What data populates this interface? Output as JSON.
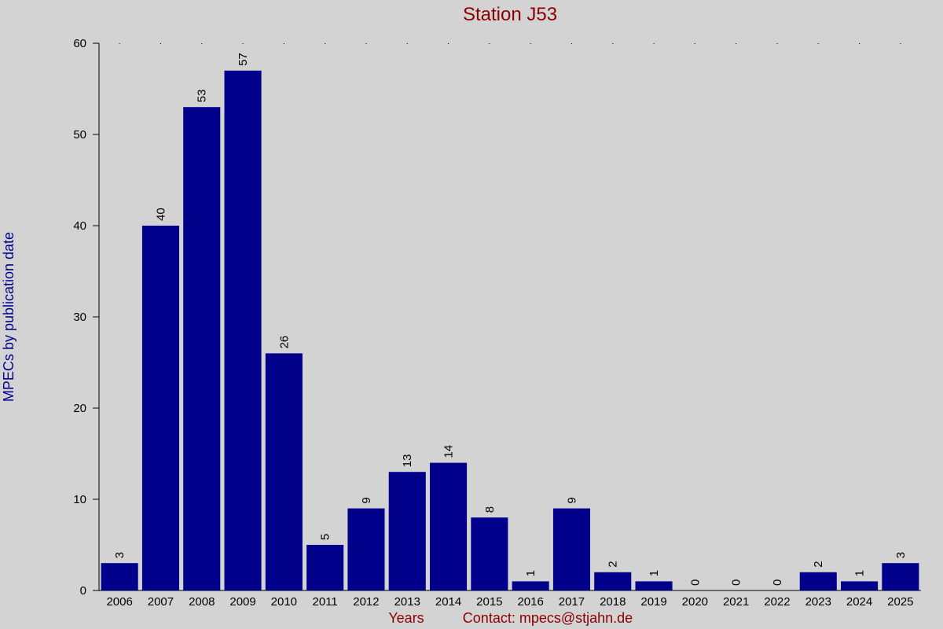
{
  "chart_data": {
    "type": "bar",
    "title": "Station J53",
    "xlabel": "Years",
    "ylabel": "MPECs by publication date",
    "contact": "Contact: mpecs@stjahn.de",
    "categories": [
      "2006",
      "2007",
      "2008",
      "2009",
      "2010",
      "2011",
      "2012",
      "2013",
      "2014",
      "2015",
      "2016",
      "2017",
      "2018",
      "2019",
      "2020",
      "2021",
      "2022",
      "2023",
      "2024",
      "2025"
    ],
    "values": [
      3,
      40,
      53,
      57,
      26,
      5,
      9,
      13,
      14,
      8,
      1,
      9,
      2,
      1,
      0,
      0,
      0,
      2,
      1,
      3
    ],
    "ylim": [
      0,
      60
    ],
    "yticks": [
      0,
      10,
      20,
      30,
      40,
      50,
      60
    ],
    "bar_color": "#00008b",
    "grid": false
  }
}
